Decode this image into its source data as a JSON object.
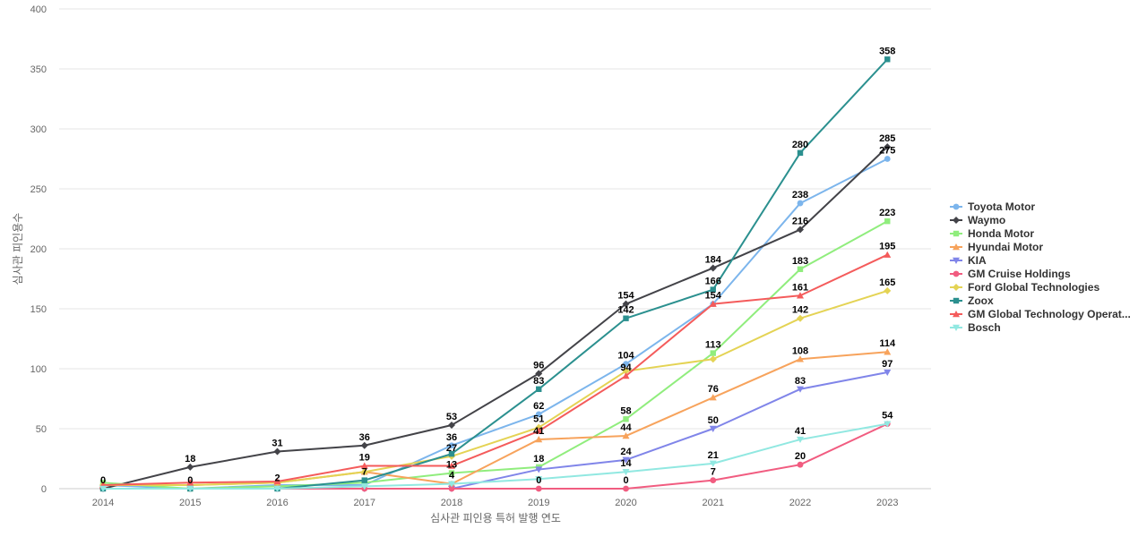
{
  "chart_data": {
    "type": "line",
    "xlabel": "심사관 피인용 특허 발행 연도",
    "ylabel": "심사관 피인용수",
    "categories": [
      "2014",
      "2015",
      "2016",
      "2017",
      "2018",
      "2019",
      "2020",
      "2021",
      "2022",
      "2023"
    ],
    "ylim": [
      0,
      400
    ],
    "yticks": [
      0,
      50,
      100,
      150,
      200,
      250,
      300,
      350,
      400
    ],
    "grid": true,
    "legend_position": "right",
    "series": [
      {
        "name": "Toyota Motor",
        "color": "#7cb5ec",
        "marker": "circle",
        "values": [
          3,
          0,
          3,
          3,
          36,
          62,
          104,
          154,
          238,
          275
        ]
      },
      {
        "name": "Waymo",
        "color": "#434348",
        "marker": "diamond",
        "values": [
          0,
          18,
          31,
          36,
          53,
          96,
          154,
          184,
          216,
          285
        ]
      },
      {
        "name": "Honda Motor",
        "color": "#90ed7d",
        "marker": "square",
        "values": [
          5,
          0,
          2,
          5,
          13,
          18,
          58,
          113,
          183,
          223
        ]
      },
      {
        "name": "Hyundai Motor",
        "color": "#f7a35c",
        "marker": "triangle",
        "values": [
          3,
          3,
          5,
          14,
          4,
          41,
          44,
          76,
          108,
          114
        ]
      },
      {
        "name": "KIA",
        "color": "#8085e9",
        "marker": "triangle-down",
        "values": [
          0,
          0,
          0,
          0,
          0,
          16,
          24,
          50,
          83,
          97
        ]
      },
      {
        "name": "GM Cruise Holdings",
        "color": "#f15c80",
        "marker": "circle",
        "values": [
          0,
          0,
          0,
          0,
          0,
          0,
          0,
          7,
          20,
          54
        ]
      },
      {
        "name": "Ford Global Technologies",
        "color": "#e4d354",
        "marker": "diamond",
        "values": [
          3,
          3,
          5,
          14,
          27,
          51,
          98,
          108,
          142,
          165
        ]
      },
      {
        "name": "Zoox",
        "color": "#2b908f",
        "marker": "square",
        "values": [
          0,
          0,
          0,
          7,
          29,
          83,
          142,
          166,
          280,
          358
        ]
      },
      {
        "name": "GM Global Technology Operat...",
        "color": "#f45b5b",
        "marker": "triangle",
        "values": [
          3,
          5,
          6,
          19,
          19,
          48,
          94,
          154,
          161,
          195
        ]
      },
      {
        "name": "Bosch",
        "color": "#91e8e1",
        "marker": "triangle-down",
        "values": [
          0,
          0,
          0,
          2,
          4,
          8,
          14,
          21,
          41,
          54
        ]
      }
    ],
    "data_labels": [
      {
        "x": "2014",
        "y": 0,
        "text": "0"
      },
      {
        "x": "2015",
        "y": 18,
        "text": "18"
      },
      {
        "x": "2015",
        "y": 0,
        "text": "0"
      },
      {
        "x": "2016",
        "y": 31,
        "text": "31"
      },
      {
        "x": "2016",
        "y": 2,
        "text": "2"
      },
      {
        "x": "2017",
        "y": 36,
        "text": "36"
      },
      {
        "x": "2017",
        "y": 19,
        "text": "19"
      },
      {
        "x": "2017",
        "y": 7,
        "text": "7"
      },
      {
        "x": "2018",
        "y": 53,
        "text": "53"
      },
      {
        "x": "2018",
        "y": 36,
        "text": "36"
      },
      {
        "x": "2018",
        "y": 27,
        "text": "27"
      },
      {
        "x": "2018",
        "y": 13,
        "text": "13"
      },
      {
        "x": "2018",
        "y": 4,
        "text": "4"
      },
      {
        "x": "2019",
        "y": 96,
        "text": "96"
      },
      {
        "x": "2019",
        "y": 83,
        "text": "83"
      },
      {
        "x": "2019",
        "y": 62,
        "text": "62"
      },
      {
        "x": "2019",
        "y": 51,
        "text": "51"
      },
      {
        "x": "2019",
        "y": 41,
        "text": "41"
      },
      {
        "x": "2019",
        "y": 18,
        "text": "18"
      },
      {
        "x": "2019",
        "y": 0,
        "text": "0"
      },
      {
        "x": "2020",
        "y": 154,
        "text": "154"
      },
      {
        "x": "2020",
        "y": 142,
        "text": "142"
      },
      {
        "x": "2020",
        "y": 104,
        "text": "104"
      },
      {
        "x": "2020",
        "y": 94,
        "text": "94"
      },
      {
        "x": "2020",
        "y": 58,
        "text": "58"
      },
      {
        "x": "2020",
        "y": 44,
        "text": "44"
      },
      {
        "x": "2020",
        "y": 24,
        "text": "24"
      },
      {
        "x": "2020",
        "y": 14,
        "text": "14"
      },
      {
        "x": "2020",
        "y": 0,
        "text": "0"
      },
      {
        "x": "2021",
        "y": 184,
        "text": "184"
      },
      {
        "x": "2021",
        "y": 166,
        "text": "166"
      },
      {
        "x": "2021",
        "y": 154,
        "text": "154"
      },
      {
        "x": "2021",
        "y": 113,
        "text": "113"
      },
      {
        "x": "2021",
        "y": 76,
        "text": "76"
      },
      {
        "x": "2021",
        "y": 50,
        "text": "50"
      },
      {
        "x": "2021",
        "y": 21,
        "text": "21"
      },
      {
        "x": "2021",
        "y": 7,
        "text": "7"
      },
      {
        "x": "2022",
        "y": 280,
        "text": "280"
      },
      {
        "x": "2022",
        "y": 238,
        "text": "238"
      },
      {
        "x": "2022",
        "y": 216,
        "text": "216"
      },
      {
        "x": "2022",
        "y": 183,
        "text": "183"
      },
      {
        "x": "2022",
        "y": 161,
        "text": "161"
      },
      {
        "x": "2022",
        "y": 142,
        "text": "142"
      },
      {
        "x": "2022",
        "y": 108,
        "text": "108"
      },
      {
        "x": "2022",
        "y": 83,
        "text": "83"
      },
      {
        "x": "2022",
        "y": 41,
        "text": "41"
      },
      {
        "x": "2022",
        "y": 20,
        "text": "20"
      },
      {
        "x": "2023",
        "y": 358,
        "text": "358"
      },
      {
        "x": "2023",
        "y": 285,
        "text": "285"
      },
      {
        "x": "2023",
        "y": 275,
        "text": "275"
      },
      {
        "x": "2023",
        "y": 223,
        "text": "223"
      },
      {
        "x": "2023",
        "y": 195,
        "text": "195"
      },
      {
        "x": "2023",
        "y": 165,
        "text": "165"
      },
      {
        "x": "2023",
        "y": 114,
        "text": "114"
      },
      {
        "x": "2023",
        "y": 97,
        "text": "97"
      },
      {
        "x": "2023",
        "y": 54,
        "text": "54"
      }
    ]
  }
}
